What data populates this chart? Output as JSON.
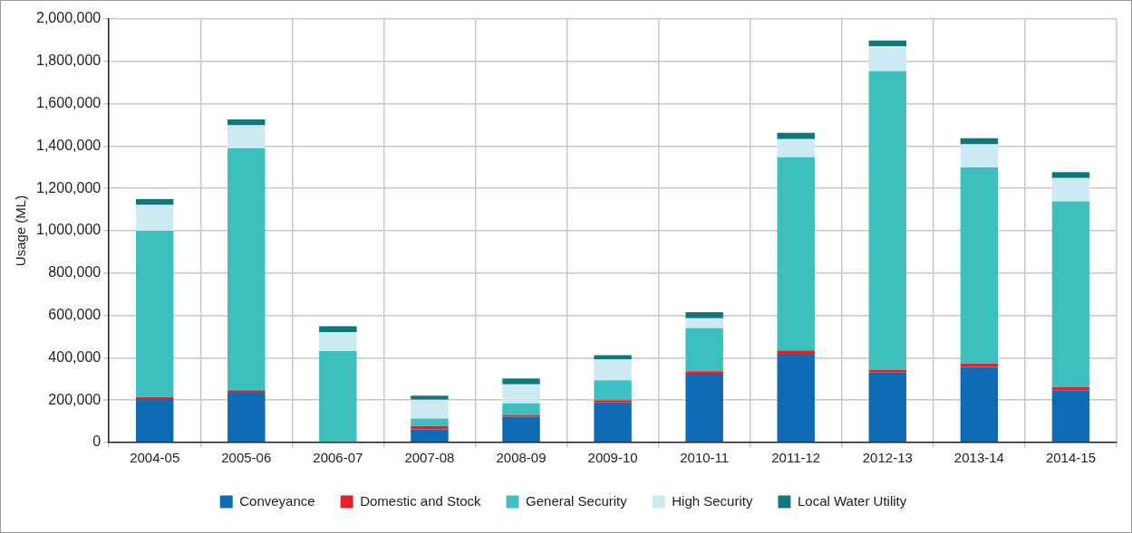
{
  "chart_data": {
    "type": "bar",
    "stacked": true,
    "ylabel": "Usage (ML)",
    "categories": [
      "2004-05",
      "2005-06",
      "2006-07",
      "2007-08",
      "2008-09",
      "2009-10",
      "2010-11",
      "2011-12",
      "2012-13",
      "2013-14",
      "2014-15"
    ],
    "series": [
      {
        "name": "Conveyance",
        "color": "#0f6ab4",
        "values": [
          205000,
          235000,
          0,
          62000,
          122000,
          189000,
          325000,
          419000,
          330000,
          357000,
          247000
        ]
      },
      {
        "name": "Domestic and Stock",
        "color": "#e8202a",
        "values": [
          10000,
          12000,
          0,
          16000,
          8000,
          11000,
          12000,
          16000,
          14000,
          15000,
          16000
        ]
      },
      {
        "name": "General Security",
        "color": "#3dbfbf",
        "values": [
          785000,
          1143000,
          432000,
          35000,
          55000,
          94000,
          204000,
          912000,
          1410000,
          927000,
          876000
        ]
      },
      {
        "name": "High Security",
        "color": "#cdeaf2",
        "values": [
          122000,
          108000,
          89000,
          89000,
          90000,
          99000,
          46000,
          86000,
          118000,
          109000,
          110000
        ]
      },
      {
        "name": "Local Water Utility",
        "color": "#11787a",
        "values": [
          28000,
          28000,
          28000,
          19000,
          27000,
          19000,
          28000,
          30000,
          26000,
          29000,
          28000
        ]
      }
    ],
    "ylim": [
      0,
      2000000
    ],
    "yticks": [
      0,
      {
        "value": 200000,
        "label": "200,000"
      },
      {
        "value": 400000,
        "label": "400,000"
      },
      {
        "value": 600000,
        "label": "600,000"
      },
      {
        "value": 800000,
        "label": "800,000"
      },
      {
        "value": 1000000,
        "label": "1,000,000"
      },
      {
        "value": 1200000,
        "label": "1,200,000"
      },
      {
        "value": 1400000,
        "label": "1,400,000"
      },
      {
        "value": 1600000,
        "label": "1,600,000"
      },
      {
        "value": 1800000,
        "label": "1,800,000"
      },
      {
        "value": 2000000,
        "label": "2,000,000"
      }
    ],
    "grid": true,
    "legend": "bottom"
  }
}
